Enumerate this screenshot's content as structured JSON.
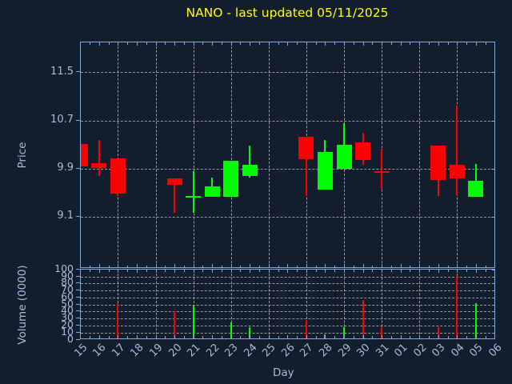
{
  "title": {
    "text": "NANO - last updated 05/11/2025"
  },
  "colors": {
    "background": "#121d2e",
    "spine": "#85aad6",
    "tick_label": "#a8bdd6",
    "grid": "#b0b0b0",
    "title": "#ffff00",
    "up": "#00ff00",
    "down": "#ff0000"
  },
  "axes": {
    "price": {
      "label": "Price",
      "tick_labels": [
        "11.5",
        "10.7",
        "9.9",
        "9.1"
      ],
      "tick_values": [
        11.5,
        10.7,
        9.9,
        9.1
      ],
      "ylim": [
        8.24,
        12.0
      ]
    },
    "volume": {
      "label": "Volume (0000)",
      "tick_values": [
        0,
        10,
        20,
        30,
        40,
        50,
        60,
        70,
        80,
        90,
        100
      ],
      "ylim": [
        0,
        100
      ]
    },
    "x": {
      "label": "Day",
      "tick_labels": [
        "15",
        "16",
        "17",
        "18",
        "19",
        "20",
        "21",
        "22",
        "23",
        "24",
        "25",
        "26",
        "27",
        "28",
        "29",
        "30",
        "31",
        "01",
        "02",
        "03",
        "04",
        "05",
        "06"
      ]
    }
  },
  "chart_data": {
    "type": "candlestick",
    "legend": "none",
    "grid": "dashed, vertical lines every 2nd day starting at day 17",
    "candles": [
      {
        "day": "15",
        "open": 10.31,
        "high": 10.31,
        "low": 9.94,
        "close": 9.94,
        "volume": 2
      },
      {
        "day": "16",
        "open": 9.99,
        "high": 10.38,
        "low": 9.78,
        "close": 9.91,
        "volume": 3
      },
      {
        "day": "17",
        "open": 10.07,
        "high": 10.07,
        "low": 9.44,
        "close": 9.48,
        "volume": 52
      },
      {
        "day": "18"
      },
      {
        "day": "19"
      },
      {
        "day": "20",
        "open": 9.74,
        "high": 9.74,
        "low": 9.17,
        "close": 9.63,
        "volume": 40
      },
      {
        "day": "21",
        "open": 9.44,
        "high": 9.85,
        "low": 9.17,
        "close": 9.45,
        "volume": 48
      },
      {
        "day": "22",
        "open": 9.43,
        "high": 9.75,
        "low": 9.43,
        "close": 9.6,
        "volume": 1
      },
      {
        "day": "23",
        "open": 9.43,
        "high": 10.03,
        "low": 9.43,
        "close": 10.03,
        "volume": 24
      },
      {
        "day": "24",
        "open": 9.78,
        "high": 10.28,
        "low": 9.75,
        "close": 9.96,
        "volume": 18
      },
      {
        "day": "25"
      },
      {
        "day": "26"
      },
      {
        "day": "27",
        "open": 10.43,
        "high": 10.43,
        "low": 9.45,
        "close": 10.06,
        "volume": 28
      },
      {
        "day": "28",
        "open": 9.55,
        "high": 10.38,
        "low": 9.55,
        "close": 10.18,
        "volume": 7
      },
      {
        "day": "29",
        "open": 9.89,
        "high": 10.65,
        "low": 9.89,
        "close": 10.3,
        "volume": 18
      },
      {
        "day": "30",
        "open": 10.33,
        "high": 10.49,
        "low": 9.96,
        "close": 10.04,
        "volume": 56
      },
      {
        "day": "31",
        "open": 9.86,
        "high": 10.23,
        "low": 9.57,
        "close": 9.85,
        "volume": 18
      },
      {
        "day": "01"
      },
      {
        "day": "02"
      },
      {
        "day": "03",
        "open": 10.28,
        "high": 10.28,
        "low": 9.45,
        "close": 9.71,
        "volume": 18
      },
      {
        "day": "04",
        "open": 9.96,
        "high": 10.94,
        "low": 9.46,
        "close": 9.74,
        "volume": 91
      },
      {
        "day": "05",
        "open": 9.43,
        "high": 9.97,
        "low": 9.43,
        "close": 9.7,
        "volume": 52
      },
      {
        "day": "06"
      }
    ]
  }
}
